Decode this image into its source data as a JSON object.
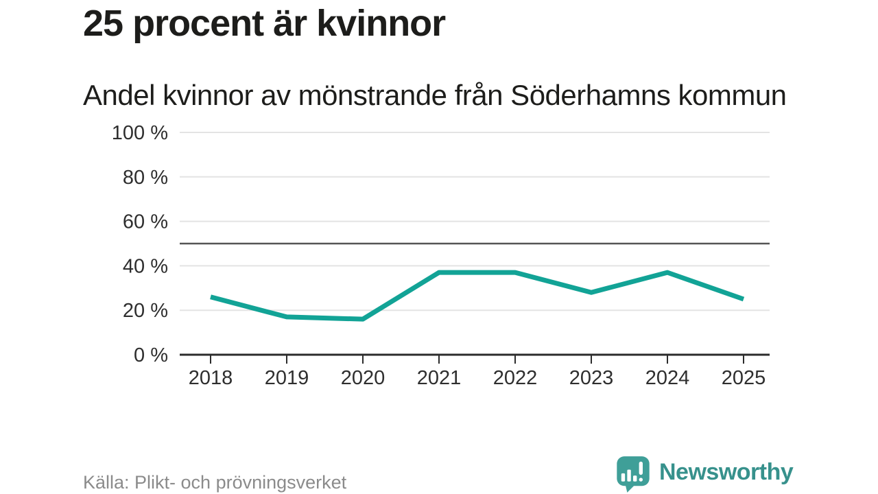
{
  "header": {
    "title": "25 procent är kvinnor",
    "subtitle": "Andel kvinnor av mönstrande från Söderhamns kommun"
  },
  "footer": {
    "source": "Källa: Plikt- och prövningsverket",
    "brand_name": "Newsworthy"
  },
  "colors": {
    "line": "#12a396",
    "grid": "#e3e3e3",
    "reference_line": "#545454",
    "axis": "#2b2b2b",
    "tick_text": "#2e2e2e",
    "title_text": "#1d1d1b",
    "source_text": "#8b8b8b",
    "brand_text": "#37918c",
    "brand_icon": "#3f9f98",
    "background": "#ffffff"
  },
  "chart_data": {
    "type": "line",
    "title": "25 procent är kvinnor",
    "subtitle": "Andel kvinnor av mönstrande från Söderhamns kommun",
    "x": [
      "2018",
      "2019",
      "2020",
      "2021",
      "2022",
      "2023",
      "2024",
      "2025"
    ],
    "series": [
      {
        "name": "Andel kvinnor av mönstrande",
        "color": "#12a396",
        "values": [
          26,
          17,
          16,
          37,
          37,
          28,
          37,
          25
        ]
      }
    ],
    "ylabel": "",
    "xlabel": "",
    "ylim": [
      0,
      100
    ],
    "yticks": [
      0,
      20,
      40,
      60,
      80,
      100
    ],
    "ytick_format": "{v} %",
    "reference_line": 50,
    "grid": true,
    "legend": "none"
  }
}
